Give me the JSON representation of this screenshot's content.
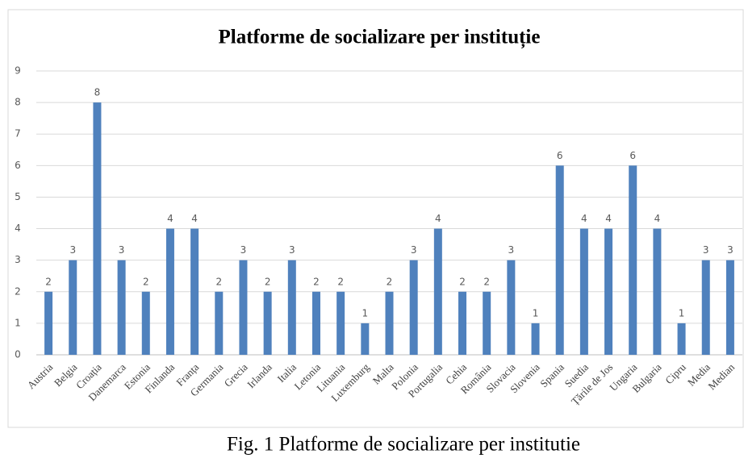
{
  "chart_data": {
    "type": "bar",
    "title": "Platforme de socializare per instituție",
    "caption": "Fig. 1 Platforme de socializare per institutie",
    "categories": [
      "Austria",
      "Belgia",
      "Croația",
      "Danemarca",
      "Estonia",
      "Finlanda",
      "Franța",
      "Germania",
      "Grecia",
      "Irlanda",
      "Italia",
      "Letonia",
      "Lituania",
      "Luxemburg",
      "Malta",
      "Polonia",
      "Portugalia",
      "Cehia",
      "România",
      "Slovacia",
      "Slovenia",
      "Spania",
      "Suedia",
      "Țările de Jos",
      "Ungaria",
      "Bulgaria",
      "Cipru",
      "Media",
      "Median"
    ],
    "values": [
      2,
      3,
      8,
      3,
      2,
      4,
      4,
      2,
      3,
      2,
      3,
      2,
      2,
      1,
      2,
      3,
      4,
      2,
      2,
      3,
      1,
      6,
      4,
      4,
      6,
      4,
      1,
      3,
      3
    ],
    "color": "#4f81bd",
    "ylim": [
      0,
      9
    ],
    "yticks": [
      0,
      1,
      2,
      3,
      4,
      5,
      6,
      7,
      8,
      9
    ],
    "grid": true
  }
}
